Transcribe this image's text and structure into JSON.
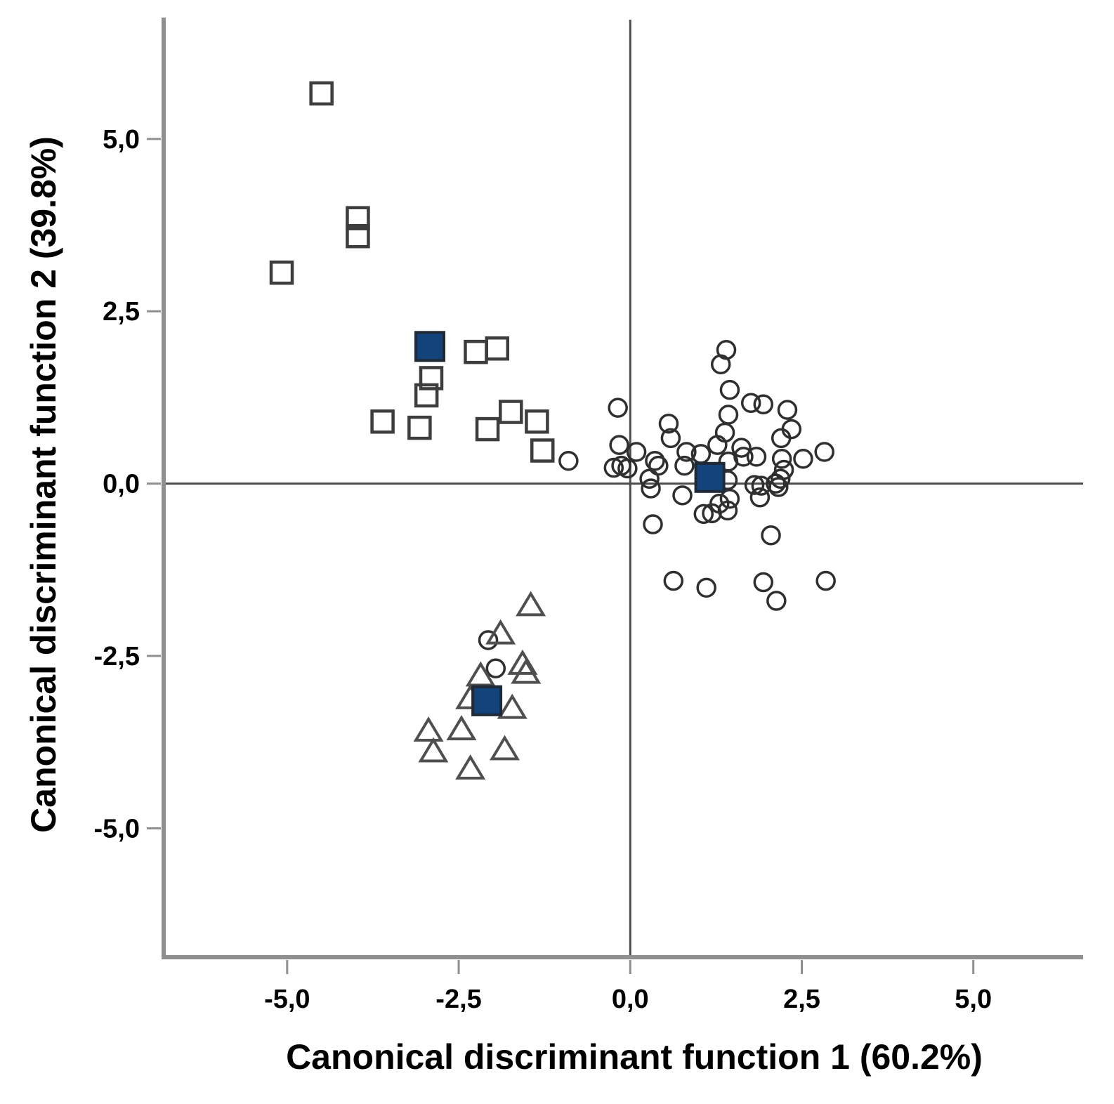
{
  "figure": {
    "x_axis_title": "Canonical discriminant function 1 (60.2%)",
    "y_axis_title": "Canonical discriminant function 2 (39.8%)"
  },
  "colors": {
    "background": "#ffffff",
    "axis_line": "#8f8f8f",
    "zero_line": "#4d4d4d",
    "tick_mark": "#8f8f8f",
    "square_stroke": "#3d3d3d",
    "circle_stroke": "#2f2f2f",
    "triangle_stroke": "#4f4f4f",
    "centroid_fill": "#12437b",
    "centroid_stroke": "#1f2a36",
    "text": "#000000"
  },
  "chart_data": {
    "type": "scatter",
    "title": "",
    "xlabel": "Canonical discriminant function 1 (60.2%)",
    "ylabel": "Canonical discriminant function 2 (39.8%)",
    "xlim": [
      -6.8,
      6.6
    ],
    "ylim": [
      -6.87,
      6.73
    ],
    "grid": false,
    "zero_lines": true,
    "legend_position": "none",
    "x_ticks": {
      "values": [
        -5.0,
        -2.5,
        0.0,
        2.5,
        5.0
      ],
      "labels": [
        "-5,0",
        "-2,5",
        "0,0",
        "2,5",
        "5,0"
      ]
    },
    "y_ticks": {
      "values": [
        -5.0,
        -2.5,
        0.0,
        2.5,
        5.0
      ],
      "labels": [
        "-5,0",
        "-2,5",
        "0,0",
        "2,5",
        "5,0"
      ]
    },
    "series": [
      {
        "name": "group-open-squares",
        "marker": "open-square",
        "points": [
          [
            -4.5,
            5.66
          ],
          [
            -3.97,
            3.85
          ],
          [
            -3.97,
            3.59
          ],
          [
            -5.08,
            3.06
          ],
          [
            -2.25,
            1.91
          ],
          [
            -1.94,
            1.96
          ],
          [
            -2.9,
            1.53
          ],
          [
            -2.97,
            1.28
          ],
          [
            -3.61,
            0.9
          ],
          [
            -3.07,
            0.81
          ],
          [
            -2.08,
            0.79
          ],
          [
            -1.74,
            1.04
          ],
          [
            -1.36,
            0.9
          ],
          [
            -1.28,
            0.48
          ]
        ]
      },
      {
        "name": "group-open-circles",
        "marker": "open-circle",
        "points": [
          [
            -0.18,
            1.1
          ],
          [
            0.56,
            0.87
          ],
          [
            0.59,
            0.66
          ],
          [
            -0.16,
            0.56
          ],
          [
            -0.24,
            0.23
          ],
          [
            -0.13,
            0.26
          ],
          [
            -0.04,
            0.22
          ],
          [
            0.09,
            0.46
          ],
          [
            0.36,
            0.33
          ],
          [
            0.41,
            0.26
          ],
          [
            0.28,
            0.07
          ],
          [
            0.3,
            -0.07
          ],
          [
            0.82,
            0.46
          ],
          [
            0.79,
            0.26
          ],
          [
            1.03,
            0.43
          ],
          [
            0.76,
            -0.17
          ],
          [
            0.33,
            -0.59
          ],
          [
            -0.9,
            0.33
          ],
          [
            1.4,
            1.94
          ],
          [
            1.32,
            1.73
          ],
          [
            1.45,
            1.36
          ],
          [
            1.43,
            1.0
          ],
          [
            1.38,
            0.74
          ],
          [
            1.27,
            0.56
          ],
          [
            1.76,
            1.17
          ],
          [
            1.94,
            1.15
          ],
          [
            2.29,
            1.07
          ],
          [
            2.35,
            0.79
          ],
          [
            2.2,
            0.66
          ],
          [
            1.62,
            0.52
          ],
          [
            1.65,
            0.39
          ],
          [
            1.84,
            0.39
          ],
          [
            2.21,
            0.36
          ],
          [
            2.52,
            0.36
          ],
          [
            2.83,
            0.46
          ],
          [
            2.24,
            0.2
          ],
          [
            2.19,
            0.07
          ],
          [
            2.12,
            0.0
          ],
          [
            2.16,
            -0.05
          ],
          [
            1.81,
            -0.02
          ],
          [
            1.91,
            -0.03
          ],
          [
            1.89,
            -0.2
          ],
          [
            1.43,
            0.32
          ],
          [
            1.42,
            0.05
          ],
          [
            1.45,
            -0.22
          ],
          [
            1.3,
            -0.29
          ],
          [
            1.19,
            -0.43
          ],
          [
            1.07,
            -0.44
          ],
          [
            1.42,
            -0.39
          ],
          [
            2.05,
            -0.75
          ],
          [
            0.63,
            -1.41
          ],
          [
            1.11,
            -1.51
          ],
          [
            1.94,
            -1.43
          ],
          [
            2.13,
            -1.7
          ],
          [
            2.85,
            -1.41
          ],
          [
            -2.07,
            -2.27
          ],
          [
            -1.96,
            -2.68
          ]
        ]
      },
      {
        "name": "group-open-triangles",
        "marker": "open-triangle",
        "points": [
          [
            -1.45,
            -1.77
          ],
          [
            -1.89,
            -2.18
          ],
          [
            -2.18,
            -2.79
          ],
          [
            -1.57,
            -2.62
          ],
          [
            -1.52,
            -2.75
          ],
          [
            -2.33,
            -3.12
          ],
          [
            -1.72,
            -3.26
          ],
          [
            -2.94,
            -3.59
          ],
          [
            -2.46,
            -3.57
          ],
          [
            -2.87,
            -3.89
          ],
          [
            -1.83,
            -3.86
          ],
          [
            -2.33,
            -4.14
          ]
        ]
      },
      {
        "name": "group-centroids",
        "marker": "filled-square",
        "points": [
          [
            -2.92,
            1.99
          ],
          [
            1.16,
            0.09
          ],
          [
            -2.09,
            -3.15
          ]
        ]
      }
    ]
  }
}
